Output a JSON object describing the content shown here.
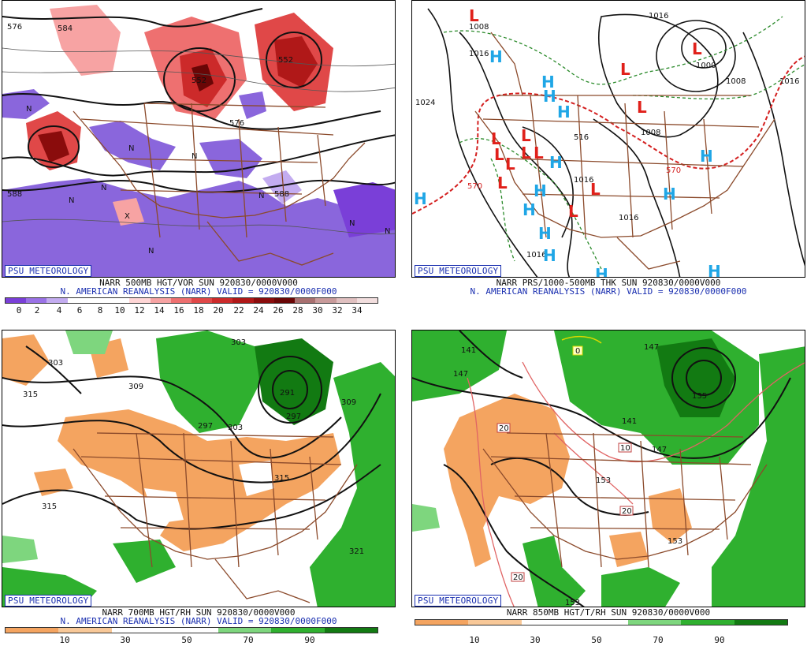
{
  "panels": {
    "p500": {
      "badge": "PSU METEOROLOGY",
      "line1": "NARR 500MB HGT/VOR SUN 920830/0000V000",
      "line2": "N. AMERICAN REANALYSIS (NARR) VALID = 920830/0000F000",
      "contours": [
        "576",
        "584",
        "552",
        "552",
        "576",
        "588",
        "588"
      ],
      "markers": [
        "N",
        "N",
        "N",
        "N",
        "N",
        "N",
        "N",
        "N",
        "X",
        "N"
      ],
      "colorbar": {
        "ticks": [
          "0",
          "2",
          "4",
          "6",
          "8",
          "10",
          "12",
          "14",
          "16",
          "18",
          "20",
          "22",
          "24",
          "26",
          "28",
          "30",
          "32",
          "34"
        ],
        "colors": [
          "#7a3fd8",
          "#9a72e6",
          "#c3acf0",
          "#ffffff",
          "#ffffff",
          "#ffffff",
          "#ffd6d6",
          "#f7a3a3",
          "#ee7070",
          "#e04848",
          "#cc2a2a",
          "#b01818",
          "#8a0c0c",
          "#6a0606",
          "#a87070",
          "#c89a9a",
          "#e0c0c0",
          "#f2dede"
        ]
      }
    },
    "psfc": {
      "badge": "PSU METEOROLOGY",
      "line1": "NARR PRS/1000-500MB THK SUN 920830/0000V000",
      "line2": "N. AMERICAN REANALYSIS (NARR) VALID = 920830/0000F000",
      "contours": [
        "1008",
        "1016",
        "1016",
        "1024",
        "1000",
        "1008",
        "1016",
        "1008",
        "1016",
        "1016",
        "570",
        "570",
        "516",
        "1016",
        "1016"
      ],
      "highs": [
        "H",
        "H",
        "H",
        "H",
        "H",
        "H",
        "H",
        "H",
        "H",
        "H",
        "H",
        "H",
        "H",
        "H"
      ],
      "lows": [
        "L",
        "L",
        "L",
        "L",
        "L",
        "L",
        "L",
        "L",
        "L",
        "L",
        "L",
        "L",
        "L"
      ]
    },
    "p700": {
      "badge": "PSU METEOROLOGY",
      "line1": "NARR 700MB HGT/RH SUN 920830/0000V000",
      "line2": "N. AMERICAN REANALYSIS (NARR) VALID = 920830/0000F000",
      "contours": [
        "303",
        "303",
        "309",
        "315",
        "291",
        "297",
        "297",
        "303",
        "309",
        "315",
        "315",
        "321"
      ],
      "colorbar": {
        "ticks": [
          "10",
          "30",
          "50",
          "70",
          "90"
        ],
        "colors": [
          "#f4a460",
          "#f8c898",
          "#ffffff",
          "#ffffff",
          "#7ed67e",
          "#2fb02f",
          "#127a12"
        ]
      }
    },
    "p850": {
      "badge": "PSU METEOROLOGY",
      "line1": "NARR 850MB HGT/T/RH SUN 920830/0000V000",
      "contours": [
        "141",
        "147",
        "147",
        "135",
        "141",
        "147",
        "153",
        "153",
        "153"
      ],
      "temps": [
        "0",
        "20",
        "10",
        "20",
        "20"
      ],
      "colorbar": {
        "ticks": [
          "10",
          "30",
          "50",
          "70",
          "90"
        ],
        "colors": [
          "#f4a460",
          "#f8c898",
          "#ffffff",
          "#ffffff",
          "#7ed67e",
          "#2fb02f",
          "#127a12"
        ]
      }
    }
  },
  "colors": {
    "brand": "#1a2fb0",
    "border": "#8b4a2b",
    "contour": "#111111",
    "high": "#1fa6e6",
    "low": "#e0201a",
    "thickness_warm": "#d42020",
    "thickness_cold": "#2a8a2a",
    "vorticity_pos": "#e04848",
    "vorticity_neg": "#8a66dc",
    "rh_moist": "#2fb02f",
    "rh_dry": "#f4a460"
  }
}
